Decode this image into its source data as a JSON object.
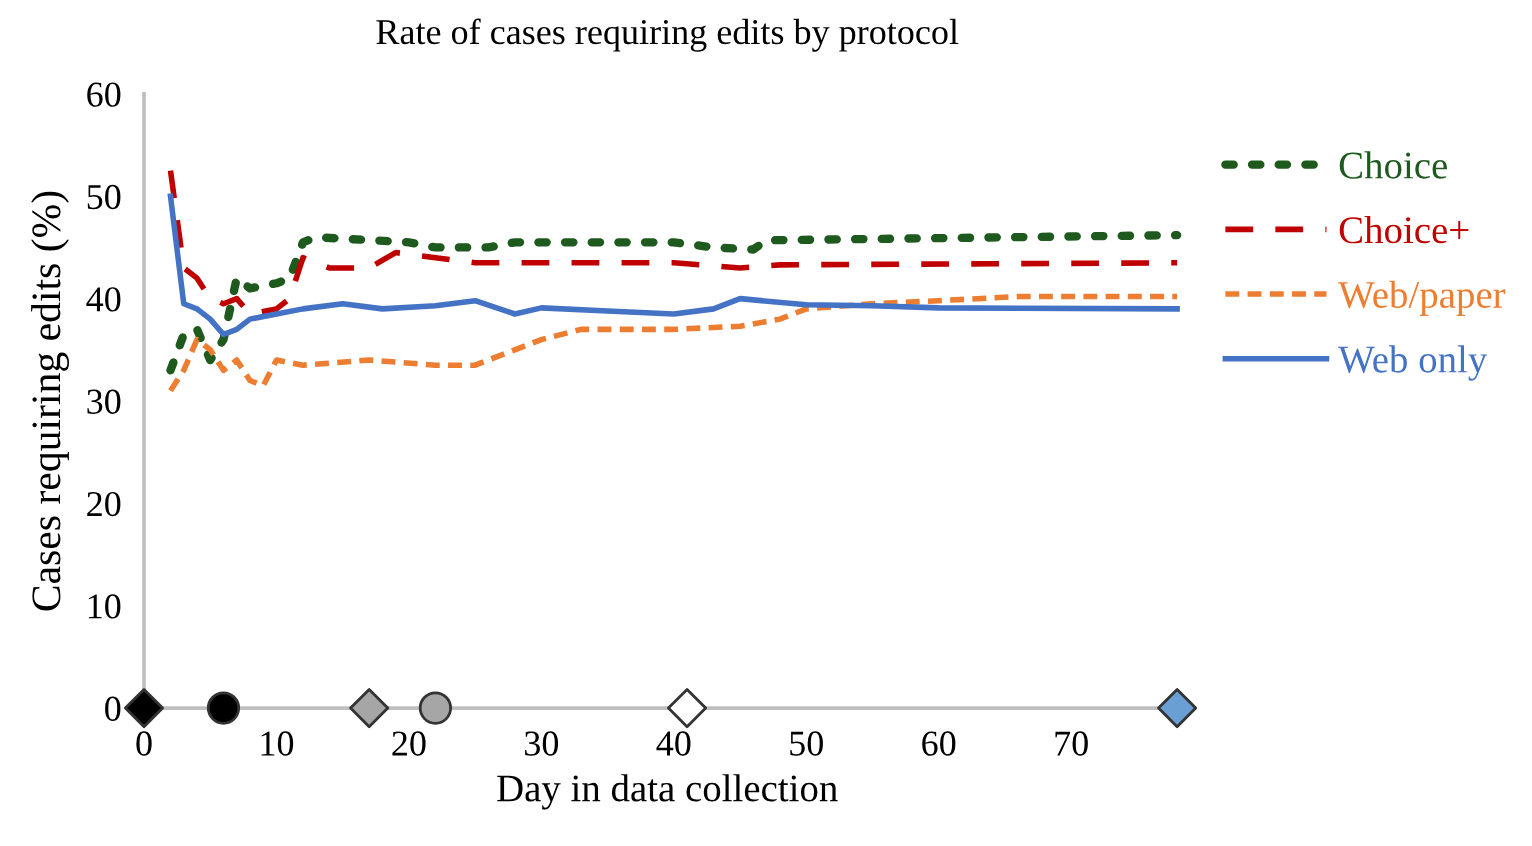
{
  "chart_data": {
    "type": "line",
    "title": "Rate of cases requiring edits by protocol",
    "xlabel": "Day in data collection",
    "ylabel": "Cases requiring edits (%)",
    "xlim": [
      0,
      79
    ],
    "xticks": [
      0,
      10,
      20,
      30,
      40,
      50,
      60,
      70
    ],
    "ylim": [
      0,
      60
    ],
    "yticks": [
      0,
      10,
      20,
      30,
      40,
      50,
      60
    ],
    "grid": false,
    "legend": "right",
    "series": [
      {
        "name": "Choice",
        "color": "#1e5a1e",
        "line_style": "dotted",
        "x": [
          2,
          3,
          4,
          5,
          6,
          7,
          8,
          10,
          11,
          12,
          13,
          20,
          22,
          26,
          28,
          40,
          43,
          46,
          47,
          78
        ],
        "values": [
          33,
          36.5,
          37,
          34,
          36,
          42,
          41,
          41.5,
          42,
          45.5,
          46,
          45.5,
          45,
          45,
          45.5,
          45.5,
          45,
          44.8,
          45.7,
          46.2
        ]
      },
      {
        "name": "Choice+",
        "color": "#c00000",
        "line_style": "dashed",
        "x": [
          2,
          3,
          4,
          5,
          6,
          7,
          8,
          10,
          11,
          12,
          14,
          17,
          19,
          22,
          25,
          30,
          35,
          40,
          45,
          48,
          78
        ],
        "values": [
          52.5,
          43,
          42,
          40,
          39.5,
          40,
          38.5,
          39,
          40,
          44,
          43,
          43,
          44.5,
          44,
          43.5,
          43.5,
          43.5,
          43.5,
          43,
          43.3,
          43.5
        ]
      },
      {
        "name": "Web/paper",
        "color": "#ed7d31",
        "line_style": "dashed",
        "x": [
          2,
          3,
          4,
          5,
          6,
          7,
          8,
          9,
          10,
          12,
          17,
          22,
          25,
          28,
          30,
          33,
          40,
          45,
          48,
          50,
          55,
          60,
          66,
          78
        ],
        "values": [
          31,
          33,
          36,
          35,
          33,
          34,
          32,
          31.5,
          34,
          33.5,
          34,
          33.5,
          33.5,
          35,
          36,
          37,
          37,
          37.3,
          38,
          39,
          39.5,
          39.8,
          40.2,
          40.2
        ]
      },
      {
        "name": "Web only",
        "color": "#4472c4",
        "line_style": "solid",
        "x": [
          2,
          3,
          4,
          5,
          6,
          7,
          8,
          10,
          12,
          15,
          18,
          22,
          25,
          28,
          30,
          35,
          40,
          43,
          45,
          50,
          55,
          60,
          78
        ],
        "values": [
          50,
          39.5,
          39,
          38,
          36.5,
          37,
          38,
          38.5,
          39,
          39.5,
          39,
          39.3,
          39.8,
          38.5,
          39.1,
          38.8,
          38.5,
          39,
          40,
          39.4,
          39.3,
          39.1,
          39
        ]
      },
      {
        "type": "scatter",
        "marker": "diamond",
        "color": "#000000",
        "x": [
          0
        ],
        "values": [
          0
        ]
      },
      {
        "type": "scatter",
        "marker": "circle",
        "color": "#000000",
        "x": [
          6
        ],
        "values": [
          0
        ]
      },
      {
        "type": "scatter",
        "marker": "diamond",
        "color": "#a6a6a6",
        "x": [
          17
        ],
        "values": [
          0
        ]
      },
      {
        "type": "scatter",
        "marker": "circle",
        "color": "#a6a6a6",
        "x": [
          22
        ],
        "values": [
          0
        ]
      },
      {
        "type": "scatter",
        "marker": "diamond",
        "color": "#ffffff",
        "x": [
          41
        ],
        "values": [
          0
        ]
      },
      {
        "type": "scatter",
        "marker": "diamond",
        "color": "#6a9fd4",
        "x": [
          78
        ],
        "values": [
          0
        ]
      }
    ]
  }
}
